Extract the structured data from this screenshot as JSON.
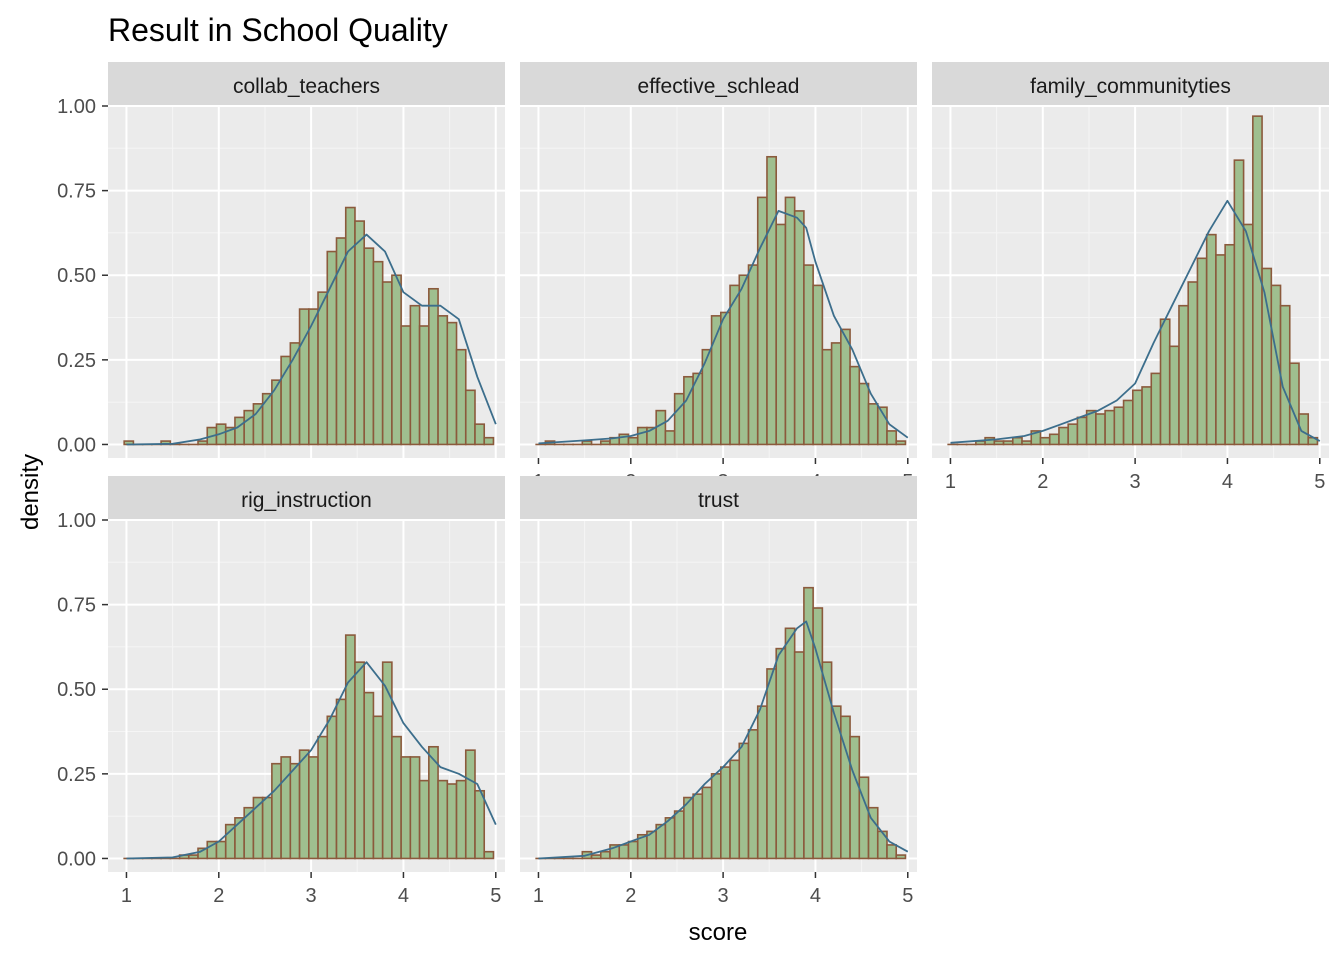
{
  "chart_data": {
    "type": "histogram",
    "title": "Result in School Quality",
    "xlabel": "score",
    "ylabel": "density",
    "xlim": [
      0.8,
      5.1
    ],
    "ylim": [
      -0.04,
      1.0
    ],
    "x_ticks": [
      1,
      2,
      3,
      4,
      5
    ],
    "y_ticks": [
      0.0,
      0.25,
      0.5,
      0.75,
      1.0
    ],
    "y_tick_labels": [
      "0.00",
      "0.25",
      "0.50",
      "0.75",
      "1.00"
    ],
    "grid": true,
    "facet_layout": "wrap 3 columns",
    "bin_width": 0.1,
    "bar_fill": "#9fbf8f",
    "bar_outline": "#8b5a3c",
    "density_line_color": "#3c6e8c",
    "panel_background": "#ebebeb",
    "strip_background": "#d9d9d9",
    "panels": [
      {
        "name": "collab_teachers",
        "bins_start": 0.975,
        "densities": [
          0.01,
          0.0,
          0.0,
          0.0,
          0.01,
          0.0,
          0.0,
          0.0,
          0.01,
          0.05,
          0.06,
          0.05,
          0.08,
          0.1,
          0.12,
          0.15,
          0.19,
          0.26,
          0.3,
          0.4,
          0.4,
          0.45,
          0.57,
          0.61,
          0.7,
          0.66,
          0.58,
          0.54,
          0.48,
          0.5,
          0.35,
          0.41,
          0.35,
          0.46,
          0.38,
          0.36,
          0.28,
          0.16,
          0.06,
          0.02
        ],
        "density_curve": [
          [
            1.0,
            0.0
          ],
          [
            1.5,
            0.002
          ],
          [
            1.8,
            0.015
          ],
          [
            2.0,
            0.03
          ],
          [
            2.2,
            0.05
          ],
          [
            2.4,
            0.09
          ],
          [
            2.6,
            0.16
          ],
          [
            2.8,
            0.25
          ],
          [
            3.0,
            0.35
          ],
          [
            3.2,
            0.46
          ],
          [
            3.4,
            0.57
          ],
          [
            3.6,
            0.62
          ],
          [
            3.8,
            0.57
          ],
          [
            4.0,
            0.45
          ],
          [
            4.2,
            0.41
          ],
          [
            4.4,
            0.41
          ],
          [
            4.6,
            0.37
          ],
          [
            4.8,
            0.2
          ],
          [
            5.0,
            0.06
          ]
        ]
      },
      {
        "name": "effective_schlead",
        "bins_start": 0.975,
        "densities": [
          0.0,
          0.01,
          0.0,
          0.0,
          0.0,
          0.01,
          0.0,
          0.01,
          0.02,
          0.03,
          0.02,
          0.05,
          0.05,
          0.1,
          0.04,
          0.15,
          0.2,
          0.21,
          0.28,
          0.38,
          0.39,
          0.47,
          0.5,
          0.53,
          0.73,
          0.85,
          0.65,
          0.73,
          0.69,
          0.53,
          0.47,
          0.28,
          0.3,
          0.34,
          0.23,
          0.18,
          0.12,
          0.11,
          0.04,
          0.01
        ],
        "density_curve": [
          [
            1.0,
            0.003
          ],
          [
            1.5,
            0.012
          ],
          [
            1.8,
            0.018
          ],
          [
            2.0,
            0.025
          ],
          [
            2.2,
            0.04
          ],
          [
            2.4,
            0.07
          ],
          [
            2.6,
            0.13
          ],
          [
            2.8,
            0.24
          ],
          [
            3.0,
            0.37
          ],
          [
            3.2,
            0.46
          ],
          [
            3.4,
            0.58
          ],
          [
            3.6,
            0.69
          ],
          [
            3.8,
            0.67
          ],
          [
            3.9,
            0.64
          ],
          [
            4.0,
            0.54
          ],
          [
            4.2,
            0.38
          ],
          [
            4.4,
            0.28
          ],
          [
            4.6,
            0.15
          ],
          [
            4.8,
            0.06
          ],
          [
            5.0,
            0.02
          ]
        ]
      },
      {
        "name": "family_communityties",
        "bins_start": 0.975,
        "densities": [
          0.0,
          0.0,
          0.0,
          0.01,
          0.02,
          0.01,
          0.01,
          0.02,
          0.01,
          0.04,
          0.02,
          0.03,
          0.05,
          0.06,
          0.08,
          0.1,
          0.09,
          0.1,
          0.11,
          0.13,
          0.16,
          0.17,
          0.21,
          0.37,
          0.29,
          0.41,
          0.48,
          0.55,
          0.62,
          0.56,
          0.59,
          0.84,
          0.65,
          0.97,
          0.52,
          0.47,
          0.41,
          0.24,
          0.09,
          0.02
        ],
        "density_curve": [
          [
            1.0,
            0.005
          ],
          [
            1.5,
            0.015
          ],
          [
            1.8,
            0.025
          ],
          [
            2.0,
            0.04
          ],
          [
            2.2,
            0.06
          ],
          [
            2.4,
            0.08
          ],
          [
            2.6,
            0.1
          ],
          [
            2.8,
            0.13
          ],
          [
            3.0,
            0.18
          ],
          [
            3.2,
            0.3
          ],
          [
            3.4,
            0.41
          ],
          [
            3.6,
            0.52
          ],
          [
            3.8,
            0.63
          ],
          [
            4.0,
            0.72
          ],
          [
            4.2,
            0.63
          ],
          [
            4.4,
            0.45
          ],
          [
            4.6,
            0.17
          ],
          [
            4.8,
            0.04
          ],
          [
            5.0,
            0.01
          ]
        ]
      },
      {
        "name": "rig_instruction",
        "bins_start": 0.975,
        "densities": [
          0.0,
          0.0,
          0.0,
          0.0,
          0.0,
          0.0,
          0.01,
          0.01,
          0.03,
          0.05,
          0.05,
          0.1,
          0.12,
          0.15,
          0.18,
          0.18,
          0.28,
          0.3,
          0.28,
          0.32,
          0.3,
          0.36,
          0.42,
          0.47,
          0.66,
          0.58,
          0.49,
          0.42,
          0.58,
          0.36,
          0.3,
          0.3,
          0.23,
          0.33,
          0.23,
          0.22,
          0.23,
          0.32,
          0.2,
          0.02
        ],
        "density_curve": [
          [
            1.0,
            0.0
          ],
          [
            1.5,
            0.003
          ],
          [
            1.8,
            0.02
          ],
          [
            2.0,
            0.05
          ],
          [
            2.2,
            0.1
          ],
          [
            2.4,
            0.15
          ],
          [
            2.6,
            0.2
          ],
          [
            2.8,
            0.26
          ],
          [
            3.0,
            0.32
          ],
          [
            3.2,
            0.41
          ],
          [
            3.4,
            0.52
          ],
          [
            3.6,
            0.58
          ],
          [
            3.8,
            0.51
          ],
          [
            4.0,
            0.4
          ],
          [
            4.2,
            0.33
          ],
          [
            4.4,
            0.27
          ],
          [
            4.6,
            0.25
          ],
          [
            4.8,
            0.22
          ],
          [
            5.0,
            0.1
          ]
        ]
      },
      {
        "name": "trust",
        "bins_start": 0.975,
        "densities": [
          0.0,
          0.0,
          0.0,
          0.0,
          0.0,
          0.02,
          0.01,
          0.02,
          0.04,
          0.04,
          0.05,
          0.07,
          0.08,
          0.1,
          0.12,
          0.14,
          0.18,
          0.19,
          0.21,
          0.25,
          0.27,
          0.29,
          0.34,
          0.38,
          0.45,
          0.56,
          0.62,
          0.68,
          0.61,
          0.8,
          0.74,
          0.58,
          0.45,
          0.42,
          0.36,
          0.24,
          0.15,
          0.08,
          0.04,
          0.01
        ],
        "density_curve": [
          [
            1.0,
            0.0
          ],
          [
            1.5,
            0.008
          ],
          [
            1.8,
            0.03
          ],
          [
            2.0,
            0.05
          ],
          [
            2.2,
            0.07
          ],
          [
            2.4,
            0.11
          ],
          [
            2.6,
            0.16
          ],
          [
            2.8,
            0.22
          ],
          [
            3.0,
            0.27
          ],
          [
            3.2,
            0.33
          ],
          [
            3.4,
            0.44
          ],
          [
            3.6,
            0.6
          ],
          [
            3.8,
            0.68
          ],
          [
            3.9,
            0.7
          ],
          [
            4.0,
            0.62
          ],
          [
            4.2,
            0.43
          ],
          [
            4.4,
            0.26
          ],
          [
            4.6,
            0.12
          ],
          [
            4.8,
            0.05
          ],
          [
            5.0,
            0.02
          ]
        ]
      }
    ]
  }
}
